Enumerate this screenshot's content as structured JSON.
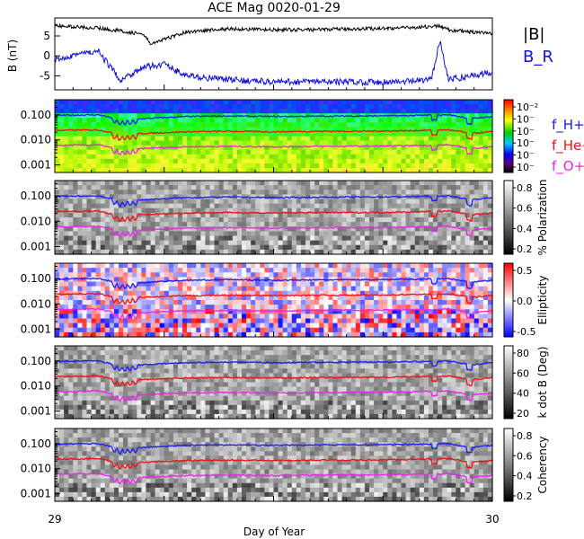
{
  "title": "ACE Mag 0020-01-29",
  "xlabel": "Day of Year",
  "x_ticks": [
    "29",
    "30"
  ],
  "colors": {
    "b_total": "#000000",
    "b_r": "#1010e0",
    "f_h": "#1a1aff",
    "f_he": "#ee1111",
    "f_o": "#ee22ee"
  },
  "panels": {
    "b": {
      "ylabel": "B (nT)",
      "yticks": [
        "5",
        "0",
        "-5"
      ],
      "legend": [
        "|B|",
        "B_R"
      ]
    },
    "power": {
      "yticks": [
        "0.100",
        "0.010",
        "0.001"
      ],
      "cbar_ticks": [
        "10⁻²",
        "10⁻",
        "10⁻",
        "10⁻",
        "10⁻",
        "10⁻"
      ],
      "legend": [
        "f_H+",
        "f_He+",
        "f_O+"
      ]
    },
    "polarization": {
      "yticks": [
        "0.100",
        "0.010",
        "0.001"
      ],
      "cbar_label": "% Polarization",
      "cbar_ticks": [
        "0.8",
        "0.6",
        "0.4",
        "0.2"
      ]
    },
    "ellipticity": {
      "yticks": [
        "0.100",
        "0.010",
        "0.001"
      ],
      "cbar_label": "Ellipticity",
      "cbar_ticks": [
        "0.5",
        "0.0",
        "-0.5"
      ]
    },
    "kdotb": {
      "yticks": [
        "0.100",
        "0.010",
        "0.001"
      ],
      "cbar_label": "k dot B (Deg)",
      "cbar_ticks": [
        "80",
        "60",
        "40",
        "20"
      ]
    },
    "coherency": {
      "yticks": [
        "0.100",
        "0.010",
        "0.001"
      ],
      "cbar_label": "Coherency",
      "cbar_ticks": [
        "0.8",
        "0.6",
        "0.4",
        "0.2"
      ]
    }
  },
  "chart_data": {
    "type": "line",
    "x_range": [
      29,
      30
    ],
    "b_panel": {
      "ylim": [
        -8.5,
        9.5
      ],
      "series": [
        {
          "name": "|B|",
          "x": [
            29.0,
            29.1,
            29.2,
            29.22,
            29.3,
            29.4,
            29.5,
            29.6,
            29.7,
            29.8,
            29.88,
            29.9,
            29.95,
            30.0
          ],
          "y": [
            7.5,
            7.0,
            5.5,
            3.0,
            6.0,
            6.8,
            6.5,
            6.6,
            6.8,
            7.0,
            7.5,
            6.5,
            6.0,
            5.5
          ]
        },
        {
          "name": "B_R",
          "x": [
            29.0,
            29.05,
            29.1,
            29.15,
            29.2,
            29.25,
            29.3,
            29.4,
            29.5,
            29.6,
            29.7,
            29.8,
            29.86,
            29.88,
            29.9,
            29.95,
            30.0
          ],
          "y": [
            -1.0,
            0.5,
            1.0,
            -6.0,
            -3.0,
            -2.0,
            -5.0,
            -6.0,
            -6.5,
            -6.5,
            -6.5,
            -6.5,
            -6.0,
            4.0,
            -6.0,
            -5.0,
            -4.0
          ]
        }
      ]
    },
    "freq_ylim": [
      0.0005,
      0.4
    ],
    "freq_lines": [
      {
        "name": "f_H+",
        "x": [
          29.0,
          29.1,
          29.15,
          29.2,
          29.3,
          29.4,
          29.5,
          29.6,
          29.7,
          29.8,
          29.9,
          29.95,
          30.0
        ],
        "y": [
          0.095,
          0.1,
          0.06,
          0.07,
          0.085,
          0.09,
          0.085,
          0.088,
          0.09,
          0.092,
          0.1,
          0.07,
          0.085
        ]
      },
      {
        "name": "f_He+",
        "x": [
          29.0,
          29.1,
          29.15,
          29.2,
          29.3,
          29.4,
          29.5,
          29.6,
          29.7,
          29.8,
          29.9,
          29.95,
          30.0
        ],
        "y": [
          0.024,
          0.025,
          0.015,
          0.018,
          0.021,
          0.022,
          0.021,
          0.022,
          0.022,
          0.023,
          0.025,
          0.018,
          0.021
        ]
      },
      {
        "name": "f_O+",
        "x": [
          29.0,
          29.1,
          29.15,
          29.2,
          29.3,
          29.4,
          29.5,
          29.6,
          29.7,
          29.8,
          29.9,
          29.95,
          30.0
        ],
        "y": [
          0.006,
          0.0063,
          0.0038,
          0.0045,
          0.0053,
          0.0055,
          0.0053,
          0.0055,
          0.0056,
          0.0058,
          0.0063,
          0.0045,
          0.0053
        ]
      }
    ]
  }
}
